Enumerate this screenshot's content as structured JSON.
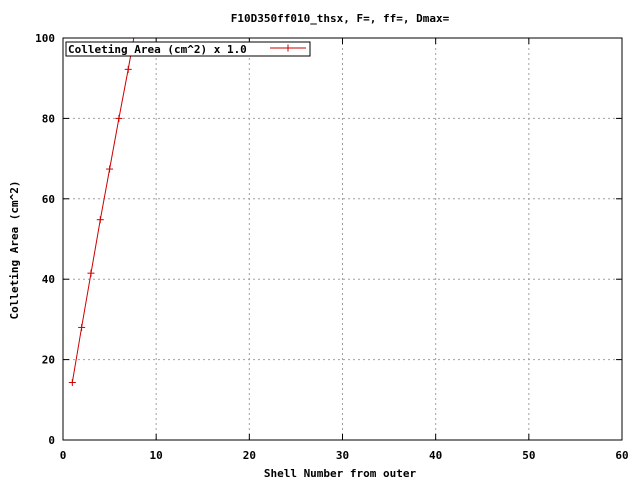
{
  "chart_data": {
    "type": "line",
    "title": "F10D350ff010_thsx, F=, ff=, Dmax=",
    "xlabel": "Shell Number from outer",
    "ylabel": "Colleting Area (cm^2)",
    "xlim": [
      0,
      60
    ],
    "ylim": [
      0,
      100
    ],
    "xticks": [
      0,
      10,
      20,
      30,
      40,
      50,
      60
    ],
    "yticks": [
      0,
      20,
      40,
      60,
      80,
      100
    ],
    "grid": true,
    "legend_position": "top-left",
    "series": [
      {
        "name": "Colleting Area (cm^2)  x 1.0",
        "color": "#cc0000",
        "marker": "plus",
        "x": [
          1,
          2,
          3,
          4,
          5,
          6,
          7,
          7.6
        ],
        "y": [
          14.3,
          28.0,
          41.5,
          54.8,
          67.4,
          80.0,
          92.2,
          100
        ]
      }
    ]
  }
}
